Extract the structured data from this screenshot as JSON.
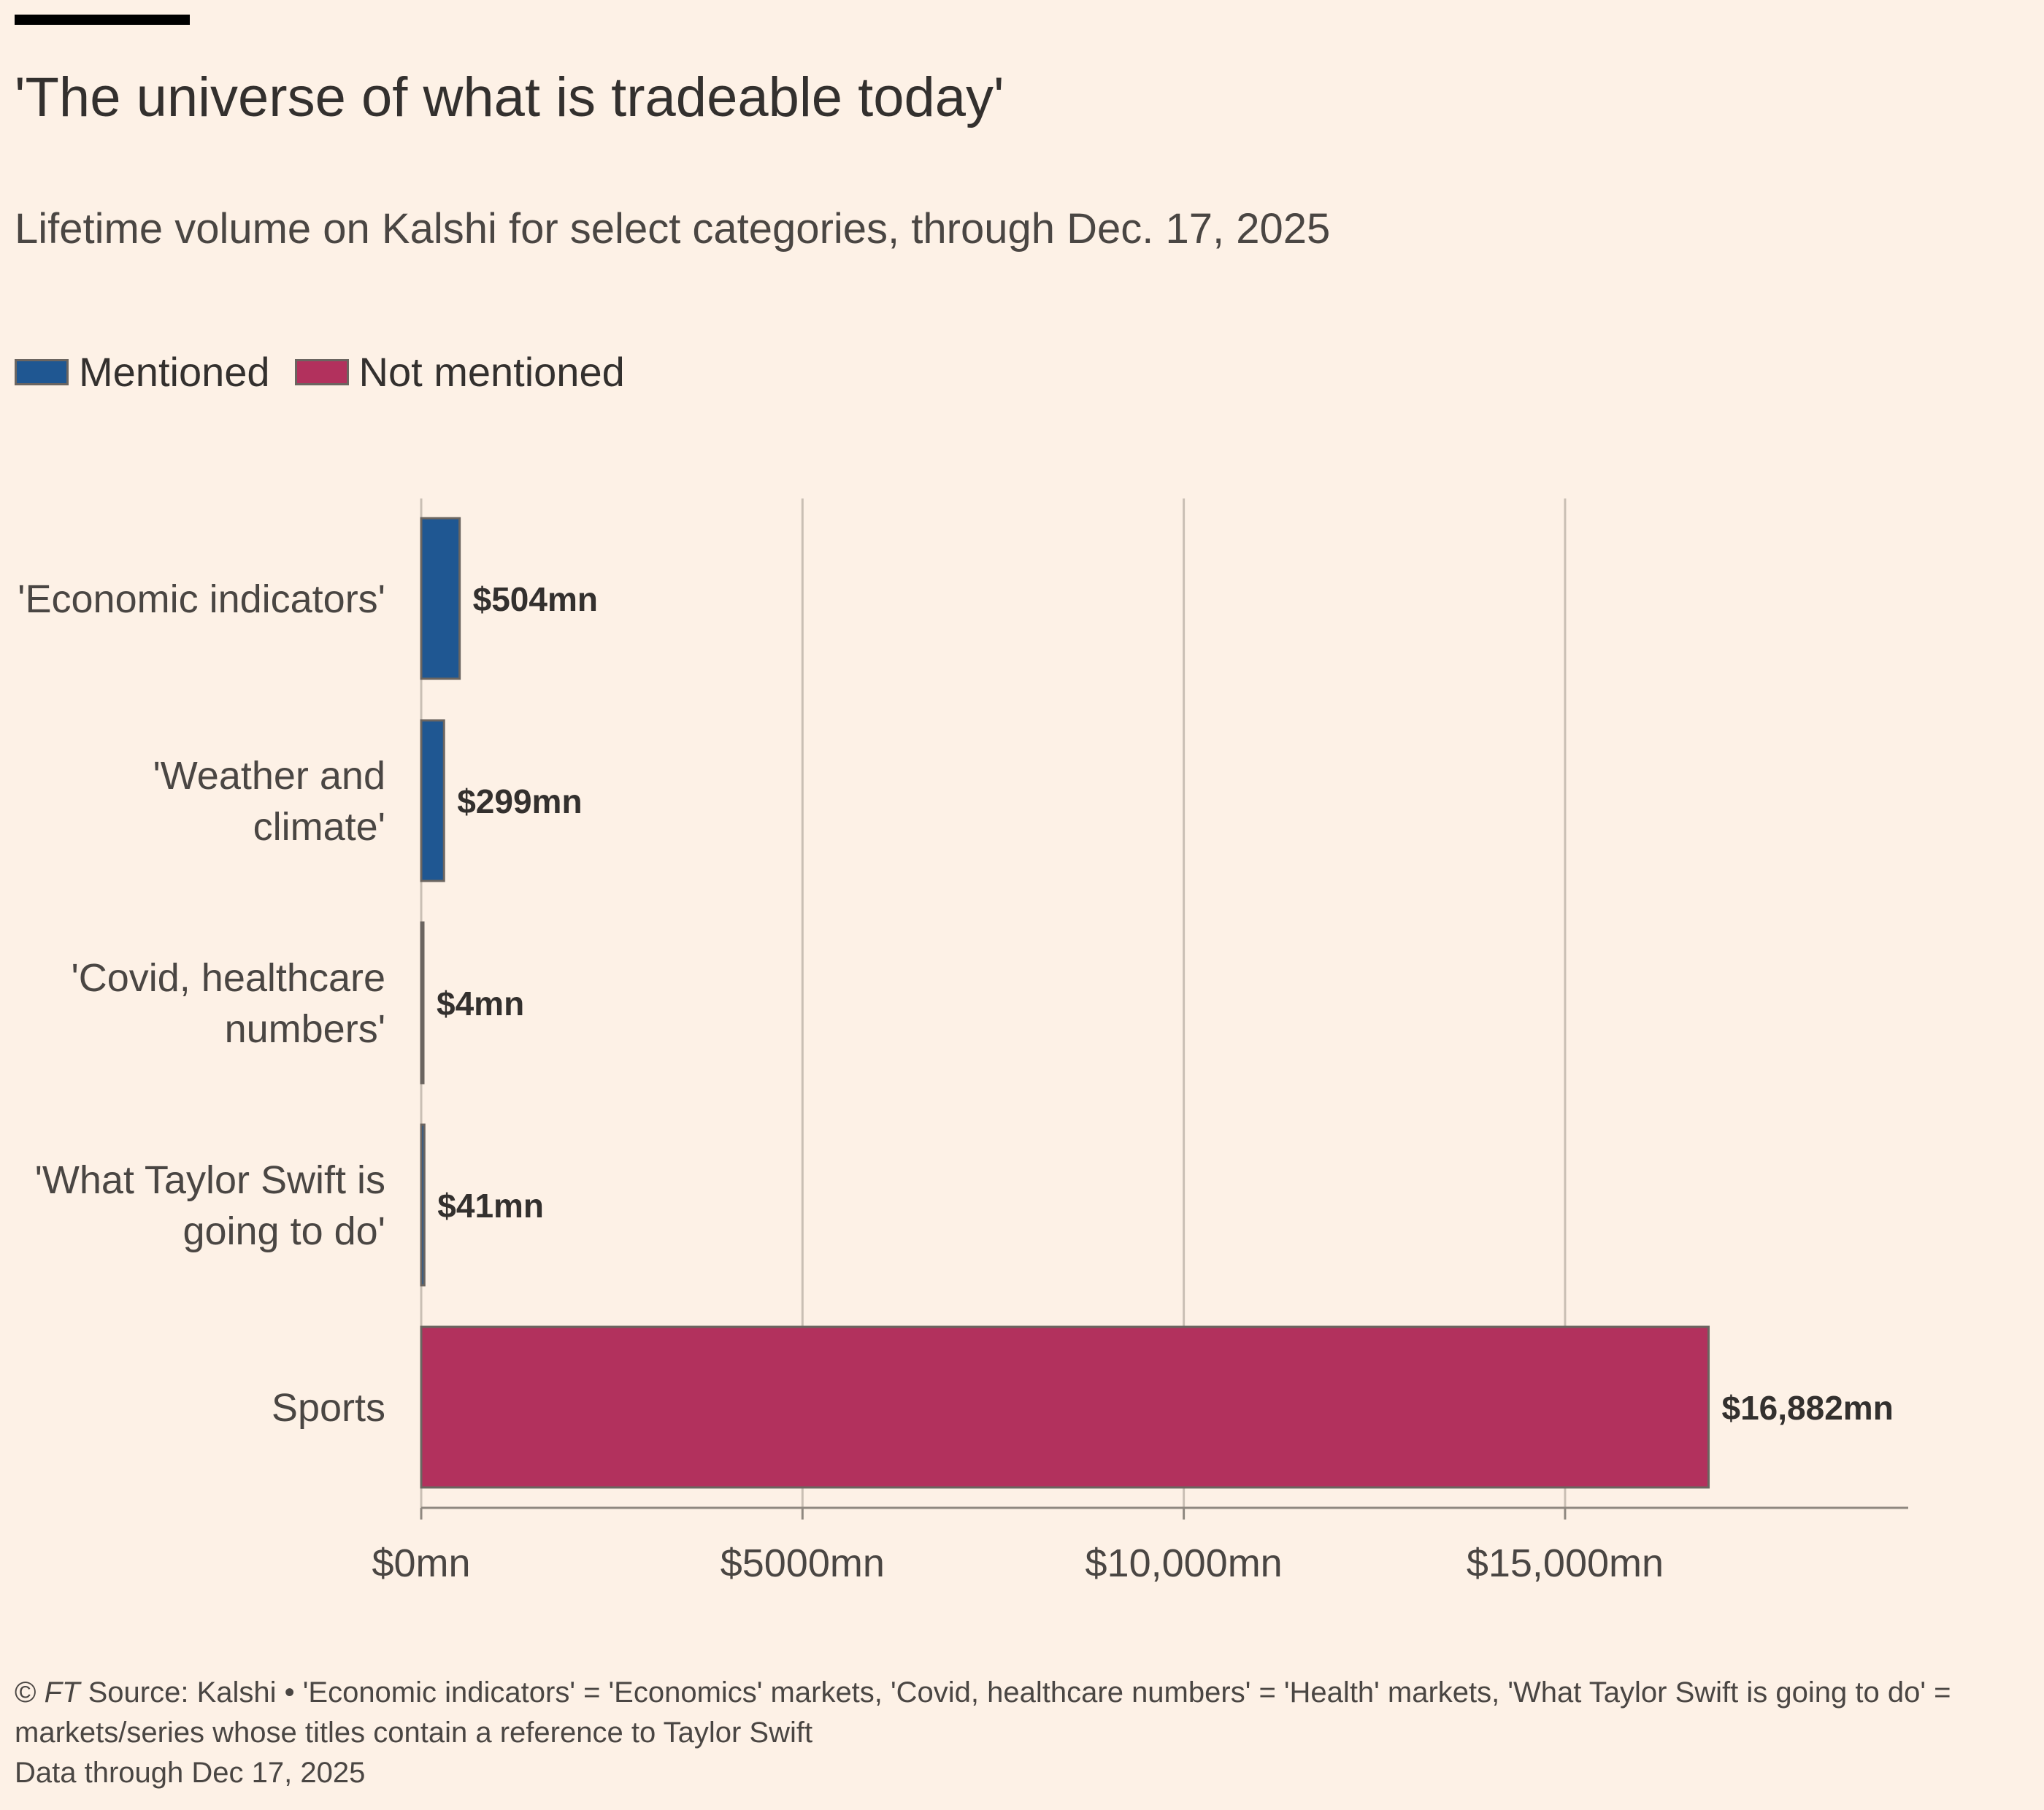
{
  "title": "'The universe of what is tradeable today'",
  "subtitle": "Lifetime volume on Kalshi for select categories, through Dec. 17, 2025",
  "legend": [
    {
      "label": "Mentioned",
      "color": "#1f5792"
    },
    {
      "label": "Not mentioned",
      "color": "#b2315d"
    }
  ],
  "footer": {
    "copyright": "©",
    "brand": "FT",
    "source": "Source: Kalshi • 'Economic indicators' = 'Economics' markets, 'Covid, healthcare numbers' = 'Health' markets, 'What Taylor Swift is going to do' = markets/series whose titles contain a reference to Taylor Swift",
    "note": "Data through Dec 17, 2025"
  },
  "chart_data": {
    "type": "bar",
    "orientation": "horizontal",
    "categories": [
      [
        "'Economic indicators'"
      ],
      [
        "'Weather and",
        "climate'"
      ],
      [
        "'Covid, healthcare",
        "numbers'"
      ],
      [
        "'What Taylor Swift is",
        "going to do'"
      ],
      [
        "Sports"
      ]
    ],
    "values": [
      504,
      299,
      4,
      41,
      16882
    ],
    "value_labels": [
      "$504mn",
      "$299mn",
      "$4mn",
      "$41mn",
      "$16,882mn"
    ],
    "groups": [
      "Mentioned",
      "Mentioned",
      "Mentioned",
      "Mentioned",
      "Not mentioned"
    ],
    "xlim": [
      0,
      19500
    ],
    "xticks": [
      0,
      5000,
      10000,
      15000
    ],
    "xtick_labels": [
      "$0mn",
      "$5000mn",
      "$10,000mn",
      "$15,000mn"
    ],
    "grid": true,
    "legend_position": "top-left"
  }
}
